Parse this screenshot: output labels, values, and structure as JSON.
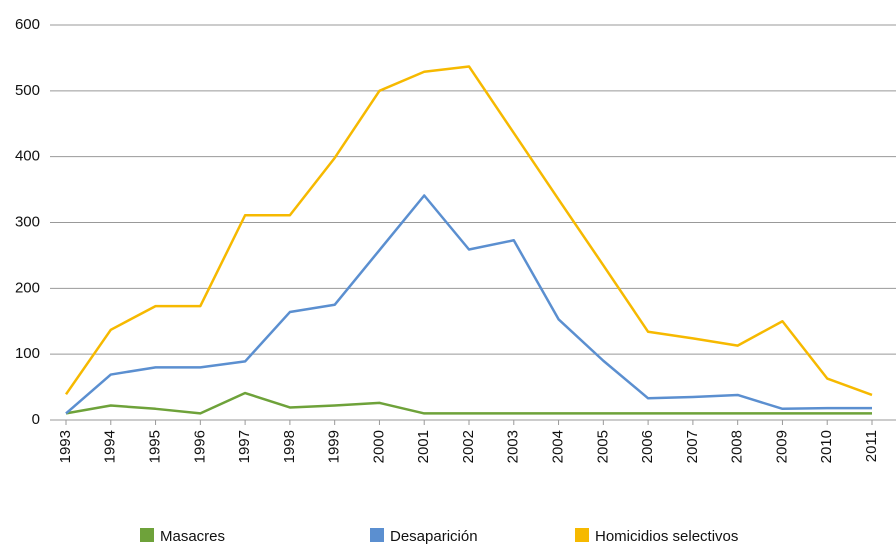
{
  "chart_data": {
    "type": "line",
    "x": [
      1993,
      1994,
      1995,
      1996,
      1997,
      1998,
      1999,
      2000,
      2001,
      2002,
      2003,
      2004,
      2005,
      2006,
      2007,
      2008,
      2009,
      2010,
      2011
    ],
    "series": [
      {
        "name": "Masacres",
        "color": "#6ea23a",
        "values": [
          10,
          22,
          17,
          10,
          41,
          19,
          22,
          26,
          10,
          10,
          10,
          10,
          10,
          10,
          10,
          10,
          10,
          10,
          10
        ]
      },
      {
        "name": "Desaparición",
        "color": "#5b8fd0",
        "values": [
          10,
          69,
          80,
          80,
          89,
          164,
          175,
          258,
          341,
          259,
          273,
          153,
          90,
          33,
          35,
          38,
          17,
          18,
          18
        ]
      },
      {
        "name": "Homicidios selectivos",
        "color": "#f6b900",
        "values": [
          39,
          137,
          173,
          173,
          311,
          311,
          398,
          500,
          529,
          537,
          436,
          335,
          235,
          134,
          124,
          113,
          150,
          63,
          38
        ]
      }
    ],
    "xlim": [
      1993,
      2011
    ],
    "xticks": [
      1993,
      1994,
      1995,
      1996,
      1997,
      1998,
      1999,
      2000,
      2001,
      2002,
      2003,
      2004,
      2005,
      2006,
      2007,
      2008,
      2009,
      2010,
      2011
    ],
    "ylim": [
      0,
      600
    ],
    "yticks": [
      0,
      100,
      200,
      300,
      400,
      500,
      600
    ],
    "grid": true,
    "legend": "bottom"
  }
}
